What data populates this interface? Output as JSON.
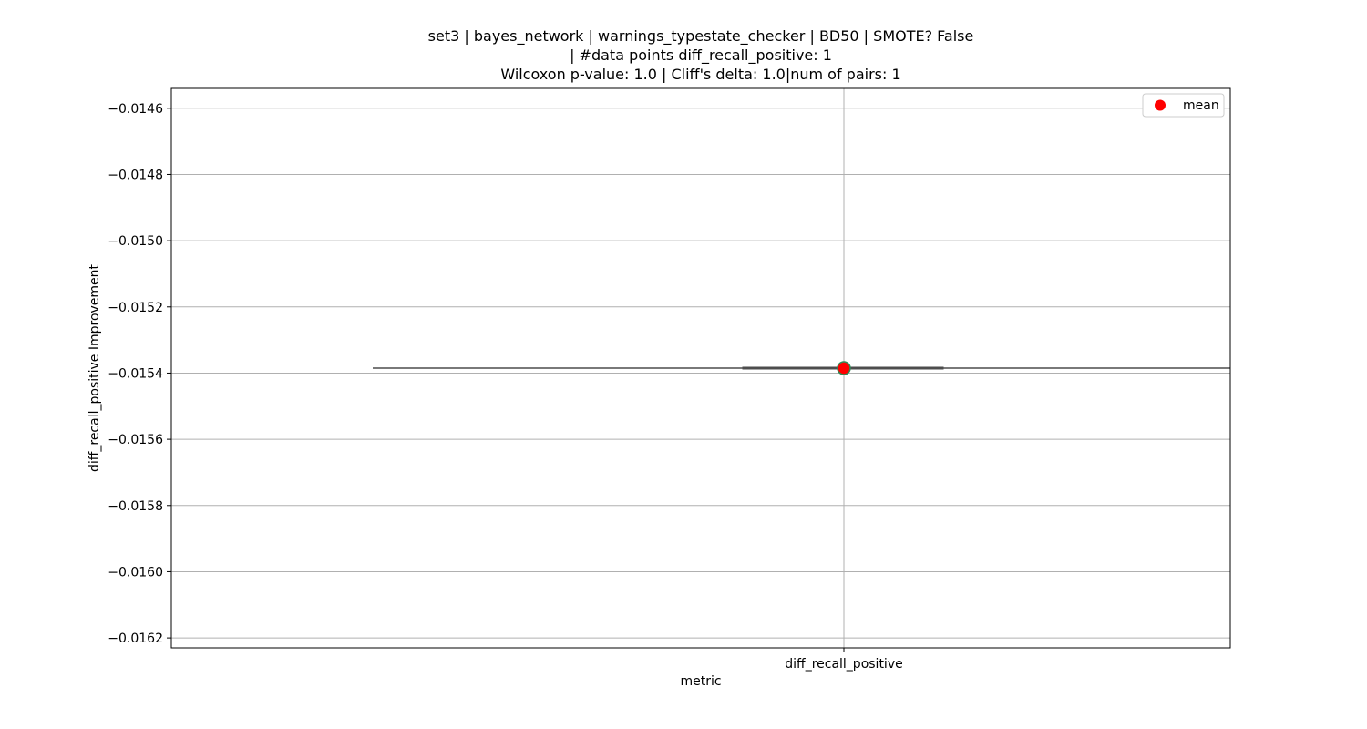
{
  "chart_data": {
    "type": "box",
    "title_lines": [
      "set3 | bayes_network | warnings_typestate_checker | BD50 | SMOTE? False",
      "| #data points diff_recall_positive: 1",
      "Wilcoxon p-value: 1.0 | Cliff's delta: 1.0|num of pairs: 1"
    ],
    "xlabel": "metric",
    "ylabel": "diff_recall_positive Improvement",
    "categories": [
      "diff_recall_positive"
    ],
    "ylim": [
      -0.01623,
      -0.01454
    ],
    "yticks": [
      -0.0146,
      -0.0148,
      -0.015,
      -0.0152,
      -0.0154,
      -0.0156,
      -0.0158,
      -0.016,
      -0.0162
    ],
    "ytick_labels": [
      "−0.0146",
      "−0.0148",
      "−0.0150",
      "−0.0152",
      "−0.0154",
      "−0.0156",
      "−0.0158",
      "−0.0160",
      "−0.0162"
    ],
    "series": [
      {
        "category": "diff_recall_positive",
        "min": -0.015385,
        "q1": -0.015385,
        "median": -0.015385,
        "q3": -0.015385,
        "max": -0.015385,
        "mean": -0.015385
      }
    ],
    "grid": true,
    "legend": {
      "placement": "top-right",
      "entries": [
        {
          "label": "mean",
          "color": "#ff0000"
        }
      ]
    },
    "colors": {
      "box_line": "#4d4d4d",
      "mean_fill": "#ff0000",
      "mean_edge": "#2e8b57",
      "grid": "#b0b0b0"
    }
  }
}
